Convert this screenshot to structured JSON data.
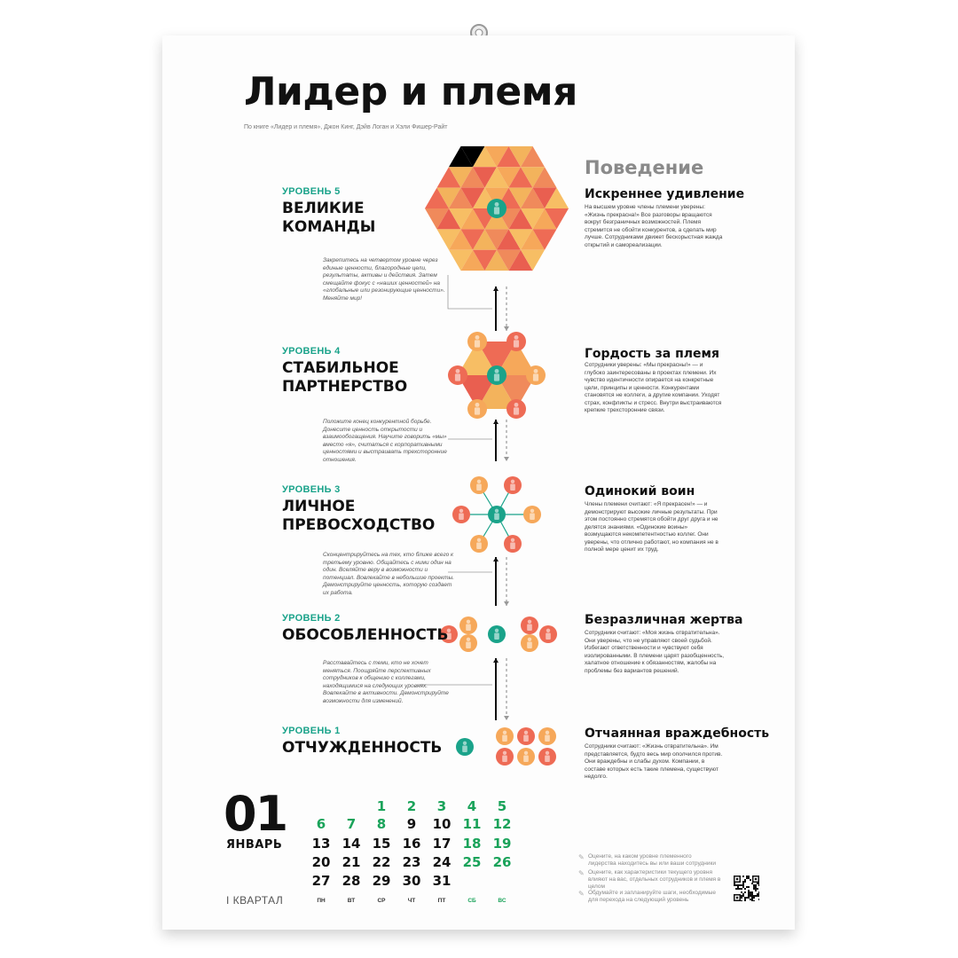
{
  "header": {
    "title": "Лидер и племя",
    "subtitle": "По книге «Лидер и племя», Джон Кинг, Дэйв Логан и Хэли Фишер-Райт",
    "behavior_heading": "Поведение"
  },
  "levels": [
    {
      "tag": "УРОВЕНЬ 5",
      "name": "ВЕЛИКИЕ КОМАНДЫ",
      "behavior_title": "Искреннее удивление",
      "behavior_text": "На высшем уровне члены племени уверены: «Жизнь прекрасна!» Все разговоры вращаются вокруг безграничных возможностей. Племя стремится не обойти конкурентов, а сделать мир лучше. Сотрудниками движет бескорыстная жажда открытий и самореализации.",
      "advice": ""
    },
    {
      "tag": "УРОВЕНЬ 4",
      "name": "СТАБИЛЬНОЕ\nПАРТНЕРСТВО",
      "behavior_title": "Гордость за племя",
      "behavior_text": "Сотрудники уверены: «Мы прекрасны!» — и глубоко заинтересованы в проектах племени. Их чувство идентичности опирается на конкретные цели, принципы и ценности. Конкурентами становятся не коллеги, а другие компании. Уходят страх, конфликты и стресс. Внутри выстраиваются крепкие трехсторонние связи.",
      "advice": "Закрепитесь на четвертом уровне через единые ценности, благородные цели, результаты, активы и действия. Затем смещайте фокус с «наших ценностей» на «глобальные или резонирующие ценности». Меняйте мир!"
    },
    {
      "tag": "УРОВЕНЬ 3",
      "name": "ЛИЧНОЕ\nПРЕВОСХОДСТВО",
      "behavior_title": "Одинокий воин",
      "behavior_text": "Члены племени считают: «Я прекрасен!» — и демонстрируют высокие личные результаты. При этом постоянно стремятся обойти друг друга и не делятся знаниями. «Одинокие воины» возмущаются некомпетентностью коллег. Они уверены, что отлично работают, но компания не в полной мере ценит их труд.",
      "advice": "Положите конец конкурентной борьбе. Донесите ценность открытости и взаимообогащения. Научите говорить «мы» вместо «я», считаться с корпоративными ценностями и выстраивать трехсторонние отношения."
    },
    {
      "tag": "УРОВЕНЬ 2",
      "name": "ОБОСОБЛЕННОСТЬ",
      "behavior_title": "Безразличная жертва",
      "behavior_text": "Сотрудники считают: «Моя жизнь отвратительна». Они уверены, что не управляют своей судьбой. Избегают ответственности и чувствуют себя изолированными. В племени царят разобщенность, халатное отношение к обязанностям, жалобы на проблемы без вариантов решений.",
      "advice": "Сконцентрируйтесь на тех, кто ближе всего к третьему уровню. Общайтесь с ними один на один. Вселяйте веру в возможности и потенциал. Вовлекайте в небольшие проекты. Демонстрируйте ценность, которую создает их работа."
    },
    {
      "tag": "УРОВЕНЬ 1",
      "name": "ОТЧУЖДЕННОСТЬ",
      "behavior_title": "Отчаянная враждебность",
      "behavior_text": "Сотрудники считают: «Жизнь отвратительна». Им представляется, будто весь мир ополчился против. Они враждебны и слабы духом. Компании, в составе которых есть такие племена, существуют недолго.",
      "advice": "Расставайтесь с теми, кто не хочет меняться. Поощряйте перспективных сотрудников к общению с коллегами, находящимися на следующих уровнях. Вовлекайте в активности. Демонстрируйте возможности для изменений."
    }
  ],
  "calendar": {
    "month_number": "01",
    "month_name": "ЯНВАРЬ",
    "quarter": "I КВАРТАЛ",
    "weekdays": [
      "ПН",
      "ВТ",
      "СР",
      "ЧТ",
      "ПТ",
      "СБ",
      "ВС"
    ],
    "weeks": [
      [
        "",
        "",
        "1",
        "2",
        "3",
        "4",
        "5"
      ],
      [
        "6",
        "7",
        "8",
        "9",
        "10",
        "11",
        "12"
      ],
      [
        "13",
        "14",
        "15",
        "16",
        "17",
        "18",
        "19"
      ],
      [
        "20",
        "21",
        "22",
        "23",
        "24",
        "25",
        "26"
      ],
      [
        "27",
        "28",
        "29",
        "30",
        "31",
        "",
        ""
      ]
    ],
    "highlighted_days": [
      "1",
      "2",
      "3",
      "4",
      "5",
      "6",
      "7",
      "8",
      "11",
      "12",
      "18",
      "19",
      "25",
      "26"
    ]
  },
  "tips": [
    "Оцените, на каком уровне племенного лидерства находитесь вы или ваши сотрудники",
    "Оцените, как характеристики текущего уровня влияют на вас, отдельных сотрудников и племя в целом",
    "Обдумайте и запланируйте шаги, необходимые для перехода на следующий уровень"
  ],
  "colors": {
    "accent_green": "#1aa35a",
    "teal": "#1aa38a",
    "orange": "#f0a150",
    "red": "#e8604e",
    "yellow": "#f7b95a"
  }
}
